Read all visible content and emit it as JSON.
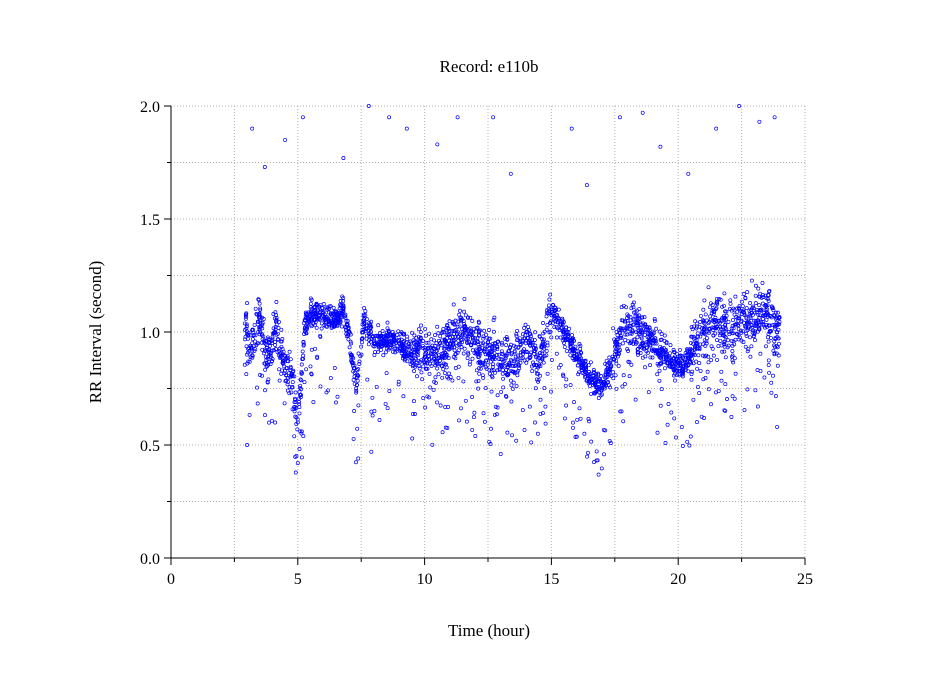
{
  "chart_data": {
    "type": "scatter",
    "title": "Record:  e110b",
    "xlabel": "Time (hour)",
    "ylabel": "RR Interval (second)",
    "xlim": [
      0,
      25
    ],
    "ylim": [
      0,
      2.0
    ],
    "x_ticks": [
      0,
      5,
      10,
      15,
      20,
      25
    ],
    "x_tick_labels": [
      "0",
      "5",
      "10",
      "15",
      "20",
      "25"
    ],
    "y_ticks": [
      0.0,
      0.5,
      1.0,
      1.5,
      2.0
    ],
    "y_tick_labels": [
      "0.0",
      "0.5",
      "1.0",
      "1.5",
      "2.0"
    ],
    "grid": true,
    "marker_color": "#0000ff",
    "series": [
      {
        "time_range": [
          2.9,
          24.0
        ],
        "points": [
          [
            3.0,
            0.9
          ],
          [
            3.2,
            0.95
          ],
          [
            3.5,
            1.05
          ],
          [
            3.8,
            0.85
          ],
          [
            4.1,
            1.0
          ],
          [
            4.4,
            0.9
          ],
          [
            4.7,
            0.8
          ],
          [
            4.9,
            0.7
          ],
          [
            5.0,
            0.6
          ],
          [
            5.3,
            1.05
          ],
          [
            5.6,
            1.08
          ],
          [
            6.0,
            1.07
          ],
          [
            6.4,
            1.05
          ],
          [
            6.8,
            1.1
          ],
          [
            7.0,
            1.0
          ],
          [
            7.3,
            0.75
          ],
          [
            7.6,
            1.05
          ],
          [
            8.0,
            0.95
          ],
          [
            8.5,
            0.97
          ],
          [
            9.0,
            0.95
          ],
          [
            9.5,
            0.9
          ],
          [
            10.0,
            0.93
          ],
          [
            10.5,
            0.88
          ],
          [
            11.0,
            0.95
          ],
          [
            11.5,
            1.0
          ],
          [
            12.0,
            0.95
          ],
          [
            12.5,
            0.9
          ],
          [
            13.0,
            0.88
          ],
          [
            13.5,
            0.85
          ],
          [
            14.0,
            0.95
          ],
          [
            14.5,
            0.85
          ],
          [
            15.0,
            1.1
          ],
          [
            15.5,
            1.0
          ],
          [
            16.0,
            0.9
          ],
          [
            16.5,
            0.8
          ],
          [
            17.0,
            0.75
          ],
          [
            17.5,
            0.9
          ],
          [
            18.0,
            1.05
          ],
          [
            18.5,
            1.0
          ],
          [
            19.0,
            0.95
          ],
          [
            19.5,
            0.9
          ],
          [
            20.0,
            0.85
          ],
          [
            20.3,
            0.85
          ],
          [
            20.7,
            0.95
          ],
          [
            21.0,
            1.0
          ],
          [
            21.5,
            1.05
          ],
          [
            22.0,
            1.0
          ],
          [
            22.5,
            1.05
          ],
          [
            23.0,
            1.05
          ],
          [
            23.5,
            1.1
          ],
          [
            23.9,
            1.0
          ],
          [
            3.2,
            1.9
          ],
          [
            3.7,
            1.73
          ],
          [
            4.5,
            1.85
          ],
          [
            5.2,
            1.95
          ],
          [
            6.8,
            1.77
          ],
          [
            7.8,
            2.0
          ],
          [
            8.6,
            1.95
          ],
          [
            9.3,
            1.9
          ],
          [
            10.5,
            1.83
          ],
          [
            11.3,
            1.95
          ],
          [
            12.7,
            1.95
          ],
          [
            13.4,
            1.7
          ],
          [
            15.8,
            1.9
          ],
          [
            16.4,
            1.65
          ],
          [
            17.7,
            1.95
          ],
          [
            18.6,
            1.97
          ],
          [
            19.3,
            1.82
          ],
          [
            20.4,
            1.7
          ],
          [
            21.5,
            1.9
          ],
          [
            22.4,
            2.0
          ],
          [
            23.2,
            1.93
          ],
          [
            23.8,
            1.95
          ],
          [
            3.0,
            0.5
          ],
          [
            5.0,
            0.42
          ],
          [
            7.9,
            0.47
          ],
          [
            12.0,
            0.54
          ],
          [
            13.0,
            0.46
          ],
          [
            16.3,
            0.55
          ],
          [
            20.6,
            0.7
          ],
          [
            23.9,
            0.58
          ]
        ]
      }
    ]
  }
}
